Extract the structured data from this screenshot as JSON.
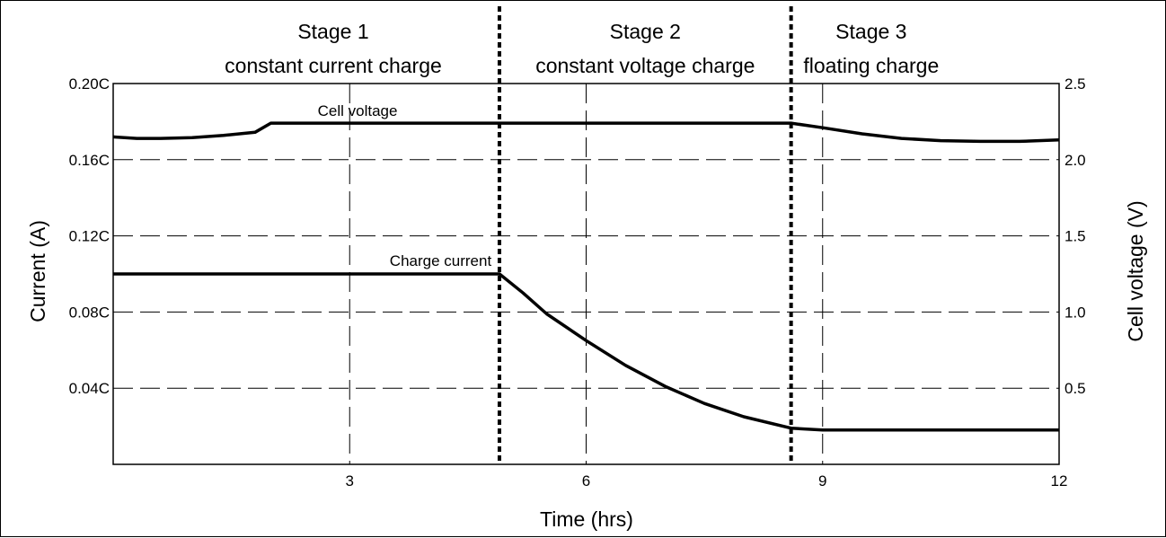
{
  "chart_data": {
    "type": "line",
    "xlabel": "Time (hrs)",
    "ylabel": "Current (A)",
    "y2label": "Cell voltage (V)",
    "xlim": [
      0,
      12
    ],
    "ylim": [
      0,
      0.2
    ],
    "y2lim": [
      0,
      2.5
    ],
    "x_ticks": [
      3,
      6,
      9,
      12
    ],
    "x_tick_labels": [
      "3",
      "6",
      "9",
      "12"
    ],
    "y_ticks": [
      0.04,
      0.08,
      0.12,
      0.16,
      0.2
    ],
    "y_tick_labels": [
      "0.04C",
      "0.08C",
      "0.12C",
      "0.16C",
      "0.20C"
    ],
    "y2_ticks": [
      0.5,
      1.0,
      1.5,
      2.0,
      2.5
    ],
    "y2_tick_labels": [
      "0.5",
      "1.0",
      "1.5",
      "2.0",
      "2.5"
    ],
    "grid": "dashed",
    "stage_boundaries": [
      4.9,
      8.6
    ],
    "stages": [
      {
        "title": "Stage 1",
        "subtitle": "constant current charge"
      },
      {
        "title": "Stage 2",
        "subtitle": "constant voltage charge"
      },
      {
        "title": "Stage 3",
        "subtitle": "floating charge"
      }
    ],
    "series": [
      {
        "name": "Cell voltage",
        "axis": "right",
        "x": [
          0,
          0.3,
          0.6,
          1.0,
          1.4,
          1.8,
          2.0,
          3,
          4.9,
          6,
          8.6,
          9.0,
          9.5,
          10.0,
          10.5,
          11.0,
          11.5,
          12.0
        ],
        "y": [
          2.15,
          2.14,
          2.14,
          2.145,
          2.16,
          2.18,
          2.24,
          2.24,
          2.24,
          2.24,
          2.24,
          2.21,
          2.17,
          2.14,
          2.125,
          2.12,
          2.12,
          2.13
        ]
      },
      {
        "name": "Charge current",
        "axis": "left",
        "x": [
          0,
          1,
          2,
          3,
          4,
          4.9,
          5.2,
          5.5,
          6.0,
          6.5,
          7.0,
          7.5,
          8.0,
          8.6,
          9.0,
          10,
          11,
          12
        ],
        "y": [
          0.1,
          0.1,
          0.1,
          0.1,
          0.1,
          0.1,
          0.09,
          0.079,
          0.065,
          0.052,
          0.041,
          0.032,
          0.025,
          0.019,
          0.018,
          0.018,
          0.018,
          0.018
        ]
      }
    ]
  }
}
